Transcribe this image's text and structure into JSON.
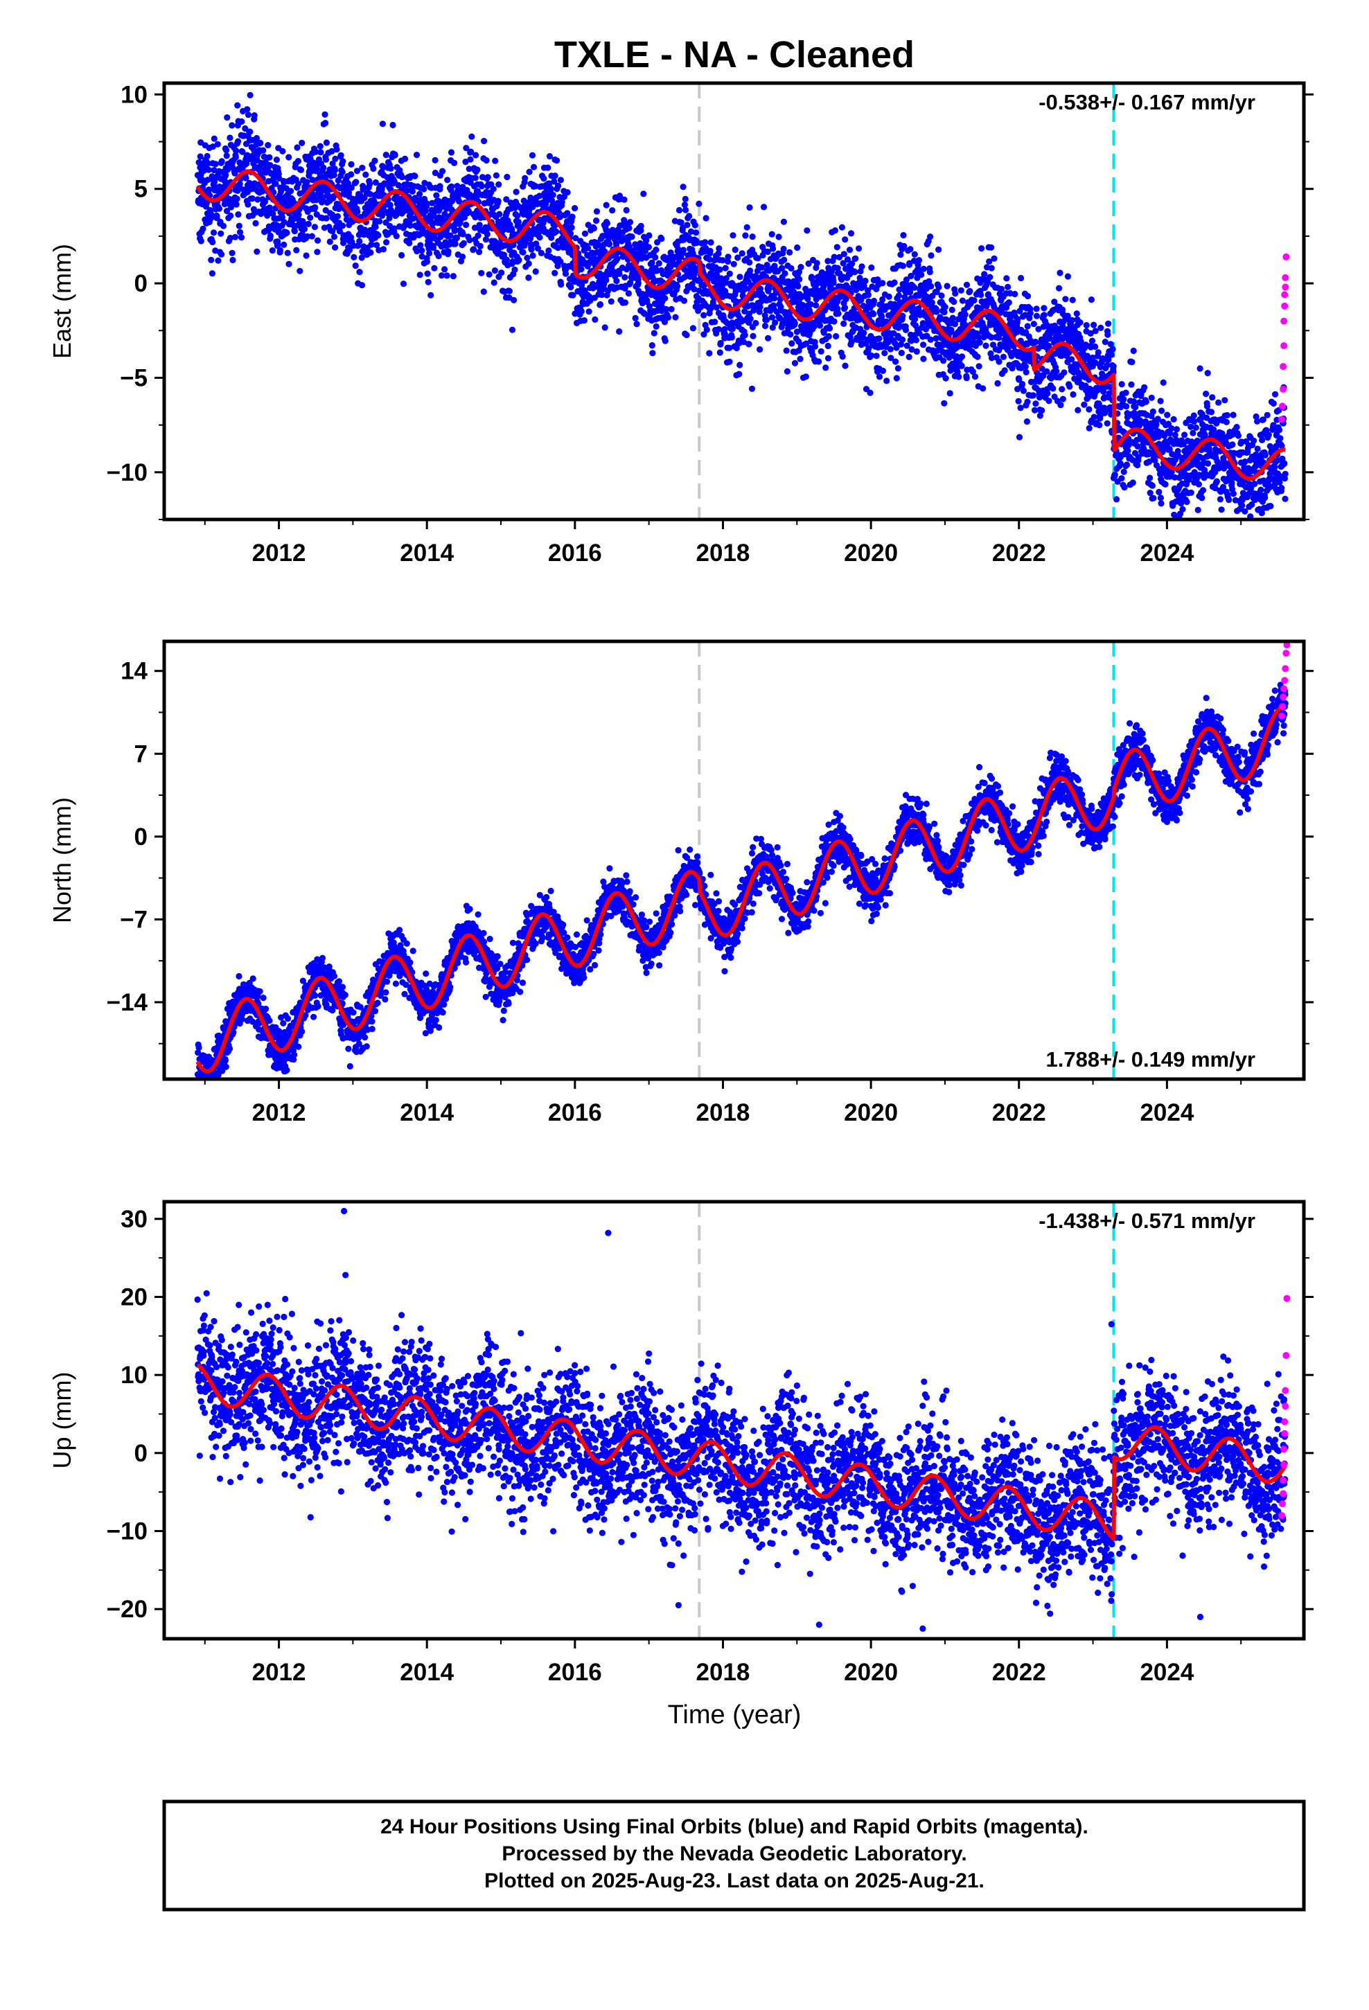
{
  "title": "TXLE  - NA - Cleaned",
  "chart_data": [
    {
      "type": "scatter",
      "component": "east",
      "ylabel": "East (mm)",
      "xlabel": "",
      "ylim": [
        -12.5,
        10.6
      ],
      "xlim": [
        2010.45,
        2025.85
      ],
      "yticks": [
        10,
        5,
        0,
        -5,
        -10
      ],
      "ytick_labels": [
        "10",
        "5",
        "0",
        "−5",
        "−10"
      ],
      "xticks": [
        2012,
        2014,
        2016,
        2018,
        2020,
        2022,
        2024
      ],
      "xtick_labels": [
        "2012",
        "2014",
        "2016",
        "2018",
        "2020",
        "2022",
        "2024"
      ],
      "rate_text": "-0.538+/- 0.167 mm/yr",
      "rate_position": "top-right",
      "vertical_lines": [
        {
          "x": 2017.68,
          "color": "#c8c8c8"
        },
        {
          "x": 2023.28,
          "color": "#00e5ee"
        }
      ],
      "trend_model": {
        "t0": 2010.9,
        "t_end": 2025.6,
        "start": 5.4,
        "rate": -0.538,
        "annual_amplitude": 0.9,
        "annual_phase_year": 0.6,
        "scatter": 1.4,
        "offsets": [
          {
            "x": 2016.0,
            "value": -1.4
          },
          {
            "x": 2017.68,
            "value": -0.6
          },
          {
            "x": 2022.2,
            "value": -1.2
          },
          {
            "x": 2023.28,
            "value": -4.0
          }
        ]
      },
      "rapid_points": [
        [
          2025.55,
          -7.2
        ],
        [
          2025.56,
          -6.5
        ],
        [
          2025.57,
          -5.6
        ],
        [
          2025.57,
          -4.4
        ],
        [
          2025.58,
          -3.3
        ],
        [
          2025.58,
          -2.0
        ],
        [
          2025.59,
          -1.2
        ],
        [
          2025.59,
          -0.6
        ],
        [
          2025.6,
          -0.2
        ],
        [
          2025.6,
          0.3
        ],
        [
          2025.61,
          1.4
        ]
      ]
    },
    {
      "type": "scatter",
      "component": "north",
      "ylabel": "North (mm)",
      "xlabel": "",
      "ylim": [
        -20.5,
        16.5
      ],
      "xlim": [
        2010.45,
        2025.85
      ],
      "yticks": [
        14,
        7,
        0,
        -7,
        -14
      ],
      "ytick_labels": [
        "14",
        "7",
        "0",
        "−7",
        "−14"
      ],
      "xticks": [
        2012,
        2014,
        2016,
        2018,
        2020,
        2022,
        2024
      ],
      "xtick_labels": [
        "2012",
        "2014",
        "2016",
        "2018",
        "2020",
        "2022",
        "2024"
      ],
      "rate_text": "1.788+/- 0.149 mm/yr",
      "rate_position": "bottom-right",
      "vertical_lines": [
        {
          "x": 2017.68,
          "color": "#c8c8c8"
        },
        {
          "x": 2023.28,
          "color": "#00e5ee"
        }
      ],
      "trend_model": {
        "t0": 2010.9,
        "t_end": 2025.6,
        "start": -17.5,
        "rate": 1.788,
        "annual_amplitude": 2.6,
        "annual_phase_year": 0.55,
        "scatter": 1.0,
        "offsets": [
          {
            "x": 2017.68,
            "value": -1.0
          },
          {
            "x": 2023.28,
            "value": 0.6
          }
        ]
      },
      "rapid_points": [
        [
          2025.55,
          10.2
        ],
        [
          2025.56,
          11.0
        ],
        [
          2025.57,
          11.8
        ],
        [
          2025.58,
          12.5
        ],
        [
          2025.59,
          13.2
        ],
        [
          2025.6,
          14.2
        ],
        [
          2025.61,
          15.5
        ],
        [
          2025.62,
          16.2
        ]
      ]
    },
    {
      "type": "scatter",
      "component": "up",
      "ylabel": "Up (mm)",
      "xlabel": "Time (year)",
      "ylim": [
        -23.8,
        32.2
      ],
      "xlim": [
        2010.45,
        2025.85
      ],
      "yticks": [
        30,
        20,
        10,
        0,
        -10,
        -20
      ],
      "ytick_labels": [
        "30",
        "20",
        "10",
        "0",
        "−10",
        "−20"
      ],
      "xticks": [
        2012,
        2014,
        2016,
        2018,
        2020,
        2022,
        2024
      ],
      "xtick_labels": [
        "2012",
        "2014",
        "2016",
        "2018",
        "2020",
        "2022",
        "2024"
      ],
      "rate_text": "-1.438+/- 0.571 mm/yr",
      "rate_position": "top-right",
      "vertical_lines": [
        {
          "x": 2017.68,
          "color": "#c8c8c8"
        },
        {
          "x": 2023.28,
          "color": "#00e5ee"
        }
      ],
      "trend_model": {
        "t0": 2010.9,
        "t_end": 2025.6,
        "start": 9.0,
        "rate": -1.438,
        "annual_amplitude": 2.4,
        "annual_phase_year": 0.85,
        "scatter": 4.2,
        "offsets": [
          {
            "x": 2023.28,
            "value": 10.5
          }
        ]
      },
      "outliers": [
        [
          2012.88,
          31.0
        ],
        [
          2016.45,
          28.2
        ],
        [
          2012.9,
          22.8
        ],
        [
          2023.25,
          16.5
        ],
        [
          2019.3,
          -22.0
        ],
        [
          2020.7,
          -22.5
        ],
        [
          2024.45,
          -21.0
        ],
        [
          2017.4,
          -19.5
        ]
      ],
      "rapid_points": [
        [
          2025.55,
          -8.0
        ],
        [
          2025.56,
          -6.5
        ],
        [
          2025.57,
          -5.2
        ],
        [
          2025.57,
          -3.5
        ],
        [
          2025.58,
          -1.5
        ],
        [
          2025.58,
          0.5
        ],
        [
          2025.59,
          2.5
        ],
        [
          2025.59,
          4.0
        ],
        [
          2025.6,
          6.0
        ],
        [
          2025.6,
          8.0
        ],
        [
          2025.61,
          12.5
        ],
        [
          2025.62,
          19.8
        ]
      ]
    }
  ],
  "colors": {
    "final_orbits": "#0000ff",
    "rapid_orbits": "#ff00ff",
    "model_fit": "#ff0000",
    "antenna_change": "#c8c8c8",
    "equipment_change": "#00e5ee"
  },
  "footer": {
    "line1": "24 Hour Positions Using Final Orbits (blue) and Rapid Orbits (magenta).",
    "line2": "Processed by the Nevada Geodetic Laboratory.",
    "line3": "Plotted on 2025-Aug-23. Last data on 2025-Aug-21."
  }
}
